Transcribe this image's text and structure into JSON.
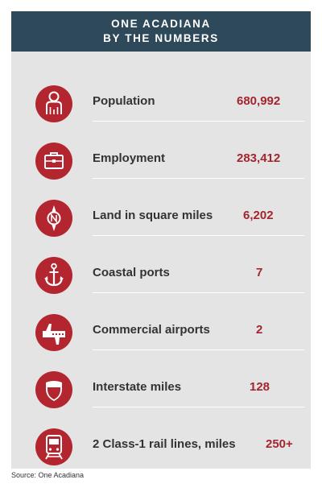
{
  "header": {
    "line1": "ONE ACADIANA",
    "line2": "BY THE NUMBERS"
  },
  "colors": {
    "header_bg": "#2e4a5a",
    "card_bg": "#e4e4e4",
    "icon_bg": "#b3262f",
    "value_text": "#a3262e",
    "label_text": "#333333"
  },
  "rows": [
    {
      "icon": "person-icon",
      "label": "Population",
      "value": "680,992"
    },
    {
      "icon": "briefcase-icon",
      "label": "Employment",
      "value": "283,412"
    },
    {
      "icon": "compass-icon",
      "label": "Land in square miles",
      "value": "6,202"
    },
    {
      "icon": "anchor-icon",
      "label": "Coastal ports",
      "value": "7"
    },
    {
      "icon": "airplane-icon",
      "label": "Commercial airports",
      "value": "2"
    },
    {
      "icon": "shield-icon",
      "label": "Interstate miles",
      "value": "128"
    },
    {
      "icon": "train-icon",
      "label": "2 Class-1 rail lines, miles",
      "value": "250+"
    }
  ],
  "source": "Source: One Acadiana"
}
